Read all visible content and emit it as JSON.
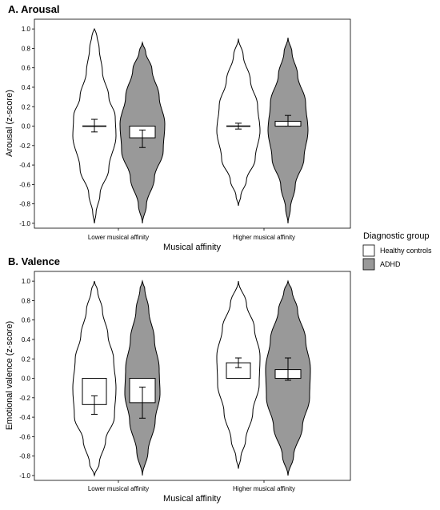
{
  "legend": {
    "title": "Diagnostic group",
    "items": [
      {
        "label": "Healthy controls",
        "color": "#ffffff"
      },
      {
        "label": "ADHD",
        "color": "#999999"
      }
    ]
  },
  "chart_data": [
    {
      "type": "violin",
      "title": "A. Arousal",
      "xlabel": "Musical affinity",
      "ylabel": "Arousal (z-score)",
      "ylim": [
        -1.05,
        1.1
      ],
      "yticks": [
        "1.0",
        "0.8",
        "0.6",
        "0.4",
        "0.2",
        "0.0",
        "-0.2",
        "-0.4",
        "-0.6",
        "-0.8",
        "-1.0"
      ],
      "categories": [
        "Lower musical affinity",
        "Higher musical affinity"
      ],
      "series": [
        {
          "name": "Healthy controls",
          "fill": "#ffffff",
          "mean": [
            0.0,
            0.0
          ],
          "err_low": [
            -0.06,
            -0.03
          ],
          "err_high": [
            0.07,
            0.03
          ],
          "min": [
            -1.0,
            -0.82
          ],
          "max": [
            1.0,
            0.9
          ]
        },
        {
          "name": "ADHD",
          "fill": "#999999",
          "mean": [
            -0.12,
            0.05
          ],
          "err_low": [
            -0.22,
            0.0
          ],
          "err_high": [
            -0.04,
            0.11
          ],
          "min": [
            -1.0,
            -1.0
          ],
          "max": [
            0.86,
            0.91
          ]
        }
      ]
    },
    {
      "type": "violin",
      "title": "B. Valence",
      "xlabel": "Musical affinity",
      "ylabel": "Emotional valence (z-score)",
      "ylim": [
        -1.05,
        1.1
      ],
      "yticks": [
        "1.0",
        "0.8",
        "0.6",
        "0.4",
        "0.2",
        "0.0",
        "-0.2",
        "-0.4",
        "-0.6",
        "-0.8",
        "-1.0"
      ],
      "categories": [
        "Lower musical affinity",
        "Higher musical affinity"
      ],
      "series": [
        {
          "name": "Healthy controls",
          "fill": "#ffffff",
          "mean": [
            -0.27,
            0.16
          ],
          "err_low": [
            -0.37,
            0.11
          ],
          "err_high": [
            -0.18,
            0.21
          ],
          "min": [
            -1.0,
            -0.93
          ],
          "max": [
            1.0,
            1.0
          ]
        },
        {
          "name": "ADHD",
          "fill": "#999999",
          "mean": [
            -0.25,
            0.09
          ],
          "err_low": [
            -0.41,
            -0.02
          ],
          "err_high": [
            -0.09,
            0.21
          ],
          "min": [
            -1.0,
            -1.0
          ],
          "max": [
            1.0,
            1.0
          ]
        }
      ]
    }
  ]
}
